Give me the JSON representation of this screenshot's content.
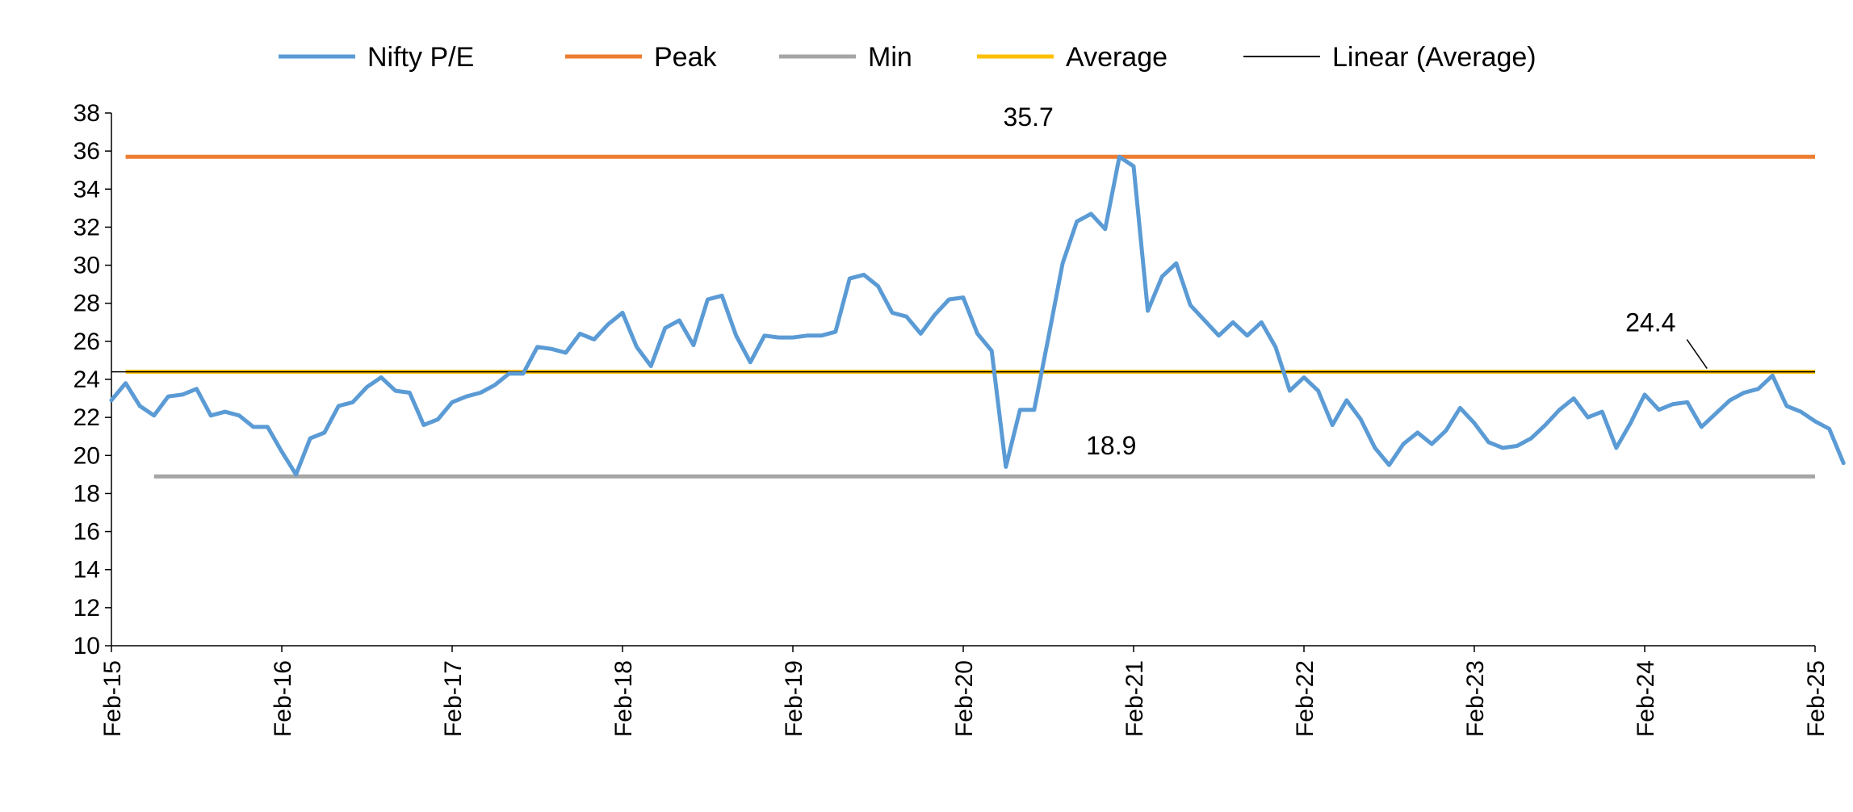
{
  "chart_data": {
    "type": "line",
    "title": "",
    "xlabel": "",
    "ylabel": "",
    "ylim": [
      10,
      38
    ],
    "y_ticks": [
      10,
      12,
      14,
      16,
      18,
      20,
      22,
      24,
      26,
      28,
      30,
      32,
      34,
      36,
      38
    ],
    "x_ticks": [
      "Feb-15",
      "Feb-16",
      "Feb-17",
      "Feb-18",
      "Feb-19",
      "Feb-20",
      "Feb-21",
      "Feb-22",
      "Feb-23",
      "Feb-24",
      "Feb-25"
    ],
    "grid": false,
    "legend_position": "top",
    "series": [
      {
        "name": "Nifty P/E",
        "color": "#5B9BD5",
        "values": [
          22.9,
          23.8,
          22.6,
          22.1,
          23.1,
          23.2,
          23.5,
          22.1,
          22.3,
          22.1,
          21.5,
          21.5,
          20.2,
          19.0,
          20.9,
          21.2,
          22.6,
          22.8,
          23.6,
          24.1,
          23.4,
          23.3,
          21.6,
          21.9,
          22.8,
          23.1,
          23.3,
          23.7,
          24.3,
          24.3,
          25.7,
          25.6,
          25.4,
          26.4,
          26.1,
          26.9,
          27.5,
          25.7,
          24.7,
          26.7,
          27.1,
          25.8,
          28.2,
          28.4,
          26.3,
          24.9,
          26.3,
          26.2,
          26.2,
          26.3,
          26.3,
          26.5,
          29.3,
          29.5,
          28.9,
          27.5,
          27.3,
          26.4,
          27.4,
          28.2,
          28.3,
          26.4,
          25.5,
          19.4,
          22.4,
          22.4,
          26.2,
          30.1,
          32.3,
          32.7,
          31.9,
          35.7,
          35.2,
          27.6,
          29.4,
          30.1,
          27.9,
          27.1,
          26.3,
          27.0,
          26.3,
          27.0,
          25.7,
          23.4,
          24.1,
          23.4,
          21.6,
          22.9,
          21.9,
          20.4,
          19.5,
          20.6,
          21.2,
          20.6,
          21.3,
          22.5,
          21.7,
          20.7,
          20.4,
          20.5,
          20.9,
          21.6,
          22.4,
          23.0,
          22.0,
          22.3,
          20.4,
          21.7,
          23.2,
          22.4,
          22.7,
          22.8,
          21.5,
          22.2,
          22.9,
          23.3,
          23.5,
          24.2,
          22.6,
          22.3,
          21.8,
          21.4,
          19.6
        ]
      },
      {
        "name": "Peak",
        "color": "#ED7D31",
        "value": 35.7,
        "x_start": "Mar-15",
        "x_end": "Feb-25"
      },
      {
        "name": "Min",
        "color": "#A5A5A5",
        "value": 18.9,
        "x_start": "May-15",
        "x_end": "Feb-25"
      },
      {
        "name": "Average",
        "color": "#FFC000",
        "value": 24.4,
        "x_start": "Mar-15",
        "x_end": "Feb-25"
      },
      {
        "name": "Linear (Average)",
        "color": "#000000",
        "value": 24.4,
        "x_start": "Feb-15",
        "x_end": "Feb-25"
      }
    ],
    "annotations": [
      {
        "text": "35.7",
        "x": "Oct-20",
        "y": 35.7
      },
      {
        "text": "24.4",
        "x": "Nov-23",
        "y": 24.4
      },
      {
        "text": "18.9",
        "x": "Nov-20",
        "y": 18.9
      }
    ]
  }
}
